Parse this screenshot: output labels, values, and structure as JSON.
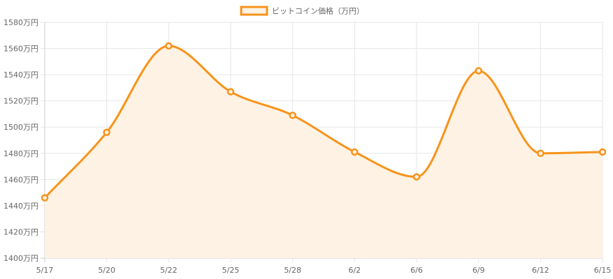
{
  "chart_data": {
    "type": "area",
    "x": [
      "5/17",
      "5/20",
      "5/22",
      "5/25",
      "5/28",
      "6/2",
      "6/6",
      "6/9",
      "6/12",
      "6/15"
    ],
    "series": [
      {
        "name": "ビットコイン価格（万円）",
        "values": [
          1446,
          1496,
          1562,
          1527,
          1509,
          1481,
          1462,
          1543,
          1480,
          1481
        ],
        "color": "#f7931a",
        "fill": "#fdf2e4"
      }
    ],
    "ylim": [
      1400,
      1580
    ],
    "y_step": 20,
    "y_tick_suffix": "万円",
    "grid": true,
    "legend": "top-center",
    "title": "",
    "xlabel": "",
    "ylabel": ""
  }
}
